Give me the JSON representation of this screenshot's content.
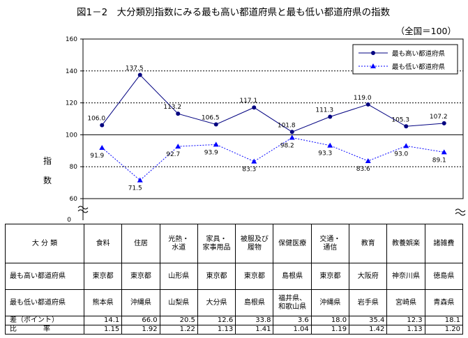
{
  "title": "図1－2　大分類別指数にみる最も高い都道府県と最も低い都道府県の指数",
  "subtitle": "（全国＝100）",
  "chart_data": {
    "type": "line",
    "ylabel": "指数",
    "ylim": [
      60,
      160
    ],
    "yticks": [
      60,
      80,
      100,
      120,
      140,
      160
    ],
    "y_zero_label": "0",
    "axis_break": true,
    "reference_line": 100,
    "grid": true,
    "legend_position": "top-right",
    "categories": [
      "食料",
      "住居",
      "光熱・水道",
      "家具・家事用品",
      "被服及び履物",
      "保健医療",
      "交通・通信",
      "教育",
      "教養娯楽",
      "諸雑費"
    ],
    "series": [
      {
        "name": "最も高い都道府県",
        "color": "#000080",
        "style": "solid",
        "marker": "circle",
        "values": [
          106.0,
          137.5,
          113.2,
          106.5,
          117.1,
          101.8,
          111.3,
          119.0,
          105.3,
          107.2
        ],
        "labels": [
          "106.0",
          "137.5",
          "113.2",
          "106.5",
          "117.1",
          "101.8",
          "111.3",
          "119.0",
          "105.3",
          "107.2"
        ]
      },
      {
        "name": "最も低い都道府県",
        "color": "#0000ff",
        "style": "dotted",
        "marker": "triangle",
        "values": [
          91.9,
          71.5,
          92.7,
          93.9,
          83.3,
          98.2,
          93.3,
          83.6,
          93.0,
          89.1
        ],
        "labels": [
          "91.9",
          "71.5",
          "92.7",
          "93.9",
          "83.3",
          "98.2",
          "93.3",
          "83.6",
          "93.0",
          "89.1"
        ]
      }
    ]
  },
  "table": {
    "header": "大 分 類",
    "categories": [
      "食料",
      "住居",
      "光熱・\n水道",
      "家具・\n家事用品",
      "被服及び\n履物",
      "保健医療",
      "交通・\n通信",
      "教育",
      "教養娯楽",
      "諸雑費"
    ],
    "rows": [
      {
        "label": "最も高い都道府県",
        "cells": [
          "東京都",
          "東京都",
          "山形県",
          "東京都",
          "東京都",
          "島根県",
          "東京都",
          "大阪府",
          "神奈川県",
          "徳島県"
        ]
      },
      {
        "label": "最も低い都道府県",
        "cells": [
          "熊本県",
          "沖縄県",
          "山梨県",
          "大分県",
          "島根県",
          "福井県、\n和歌山県",
          "沖縄県",
          "岩手県",
          "宮崎県",
          "青森県"
        ]
      },
      {
        "label": "差（ポイント）",
        "cells": [
          "14.1",
          "66.0",
          "20.5",
          "12.6",
          "33.8",
          "3.6",
          "18.0",
          "35.4",
          "12.3",
          "18.1"
        ]
      },
      {
        "label": "比　　率",
        "cells": [
          "1.15",
          "1.92",
          "1.22",
          "1.13",
          "1.41",
          "1.04",
          "1.19",
          "1.42",
          "1.13",
          "1.20"
        ]
      }
    ]
  }
}
